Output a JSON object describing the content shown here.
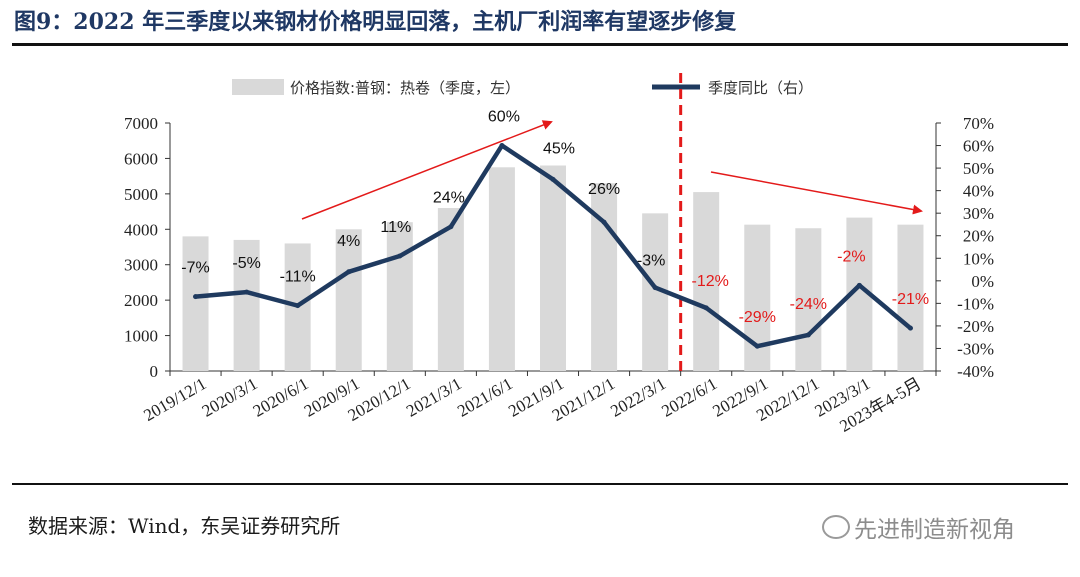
{
  "title": "图9：2022 年三季度以来钢材价格明显回落，主机厂利润率有望逐步修复",
  "source": "数据来源：Wind，东吴证券研究所",
  "watermark": "先进制造新视角",
  "colors": {
    "bar": "#d9d9d9",
    "line": "#1f3a5f",
    "divider": "#e31a1a",
    "arrow": "#e31a1a",
    "title": "#1f3864"
  },
  "chart_data": {
    "type": "bar",
    "categories": [
      "2019/12/1",
      "2020/3/1",
      "2020/6/1",
      "2020/9/1",
      "2020/12/1",
      "2021/3/1",
      "2021/6/1",
      "2021/9/1",
      "2021/12/1",
      "2022/3/1",
      "2022/6/1",
      "2022/9/1",
      "2022/12/1",
      "2023/3/1",
      "2023年4-5月"
    ],
    "series": [
      {
        "name": "价格指数:普钢：热卷（季度，左）",
        "type": "bar",
        "axis": "left",
        "values": [
          3800,
          3700,
          3600,
          4000,
          4200,
          4600,
          5750,
          5800,
          5300,
          4450,
          5050,
          4130,
          4030,
          4330,
          4130
        ]
      },
      {
        "name": "季度同比（右）",
        "type": "line",
        "axis": "right",
        "values": [
          -7,
          -5,
          -11,
          4,
          11,
          24,
          60,
          45,
          26,
          -3,
          -12,
          -29,
          -24,
          -2,
          -21
        ],
        "labels": [
          "-7%",
          "-5%",
          "-11%",
          "4%",
          "11%",
          "24%",
          "60%",
          "45%",
          "26%",
          "-3%",
          "-12%",
          "-29%",
          "-24%",
          "-2%",
          "-21%"
        ]
      }
    ],
    "left_axis": {
      "ylim": [
        0,
        7000
      ],
      "ticks": [
        "0",
        "1000",
        "2000",
        "3000",
        "4000",
        "5000",
        "6000",
        "7000"
      ]
    },
    "right_axis": {
      "ylim": [
        -40,
        70
      ],
      "ticks": [
        "-40%",
        "-30%",
        "-20%",
        "-10%",
        "0%",
        "10%",
        "20%",
        "30%",
        "40%",
        "50%",
        "60%",
        "70%"
      ]
    },
    "divider_between": [
      9,
      10
    ],
    "legend_position": "top"
  }
}
